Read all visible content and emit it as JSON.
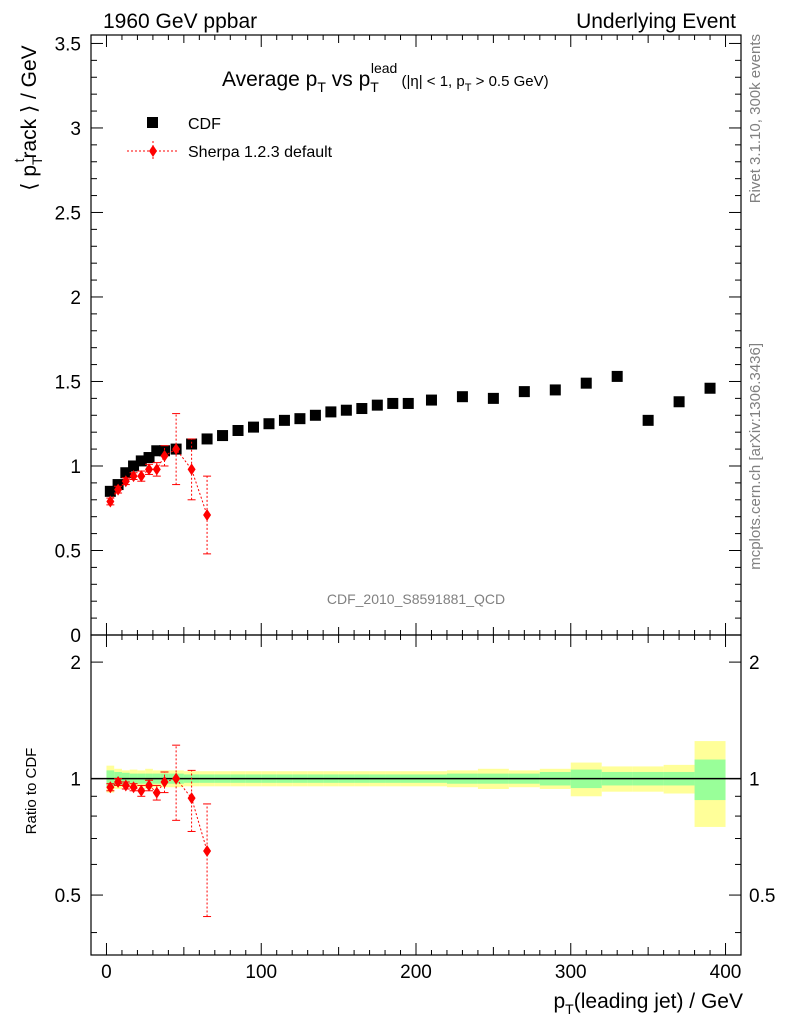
{
  "header": {
    "left": "1960 GeV ppbar",
    "right": "Underlying Event"
  },
  "side": {
    "rivet": "Rivet 3.1.10,  300k events",
    "mcplots": "mcplots.cern.ch [arXiv:1306.3436]"
  },
  "chart_data": [
    {
      "type": "scatter",
      "title": "Average p_T vs p_T^lead (|η| < 1, p_T > 0.5 GeV)",
      "ylabel": "⟨ p_T^track ⟩ / GeV",
      "watermark": "CDF_2010_S8591881_QCD",
      "xlim": [
        -10,
        410
      ],
      "ylim": [
        0,
        3.55
      ],
      "yticks": [
        0,
        0.5,
        1,
        1.5,
        2,
        2.5,
        3,
        3.5
      ],
      "ytick_labels": [
        "0",
        "0.5",
        "1",
        "1.5",
        "2",
        "2.5",
        "3",
        "3.5"
      ],
      "legend": [
        "CDF",
        "Sherpa 1.2.3 default"
      ],
      "series": [
        {
          "name": "CDF",
          "x": [
            2.5,
            7.5,
            12.5,
            17.5,
            22.5,
            27.5,
            32.5,
            37.5,
            45,
            55,
            65,
            75,
            85,
            95,
            105,
            115,
            125,
            135,
            145,
            155,
            165,
            175,
            185,
            195,
            210,
            230,
            250,
            270,
            290,
            310,
            330,
            350,
            370,
            390
          ],
          "y": [
            0.85,
            0.89,
            0.96,
            1.0,
            1.03,
            1.05,
            1.09,
            1.09,
            1.1,
            1.13,
            1.16,
            1.18,
            1.21,
            1.23,
            1.25,
            1.27,
            1.28,
            1.3,
            1.32,
            1.33,
            1.34,
            1.36,
            1.37,
            1.37,
            1.39,
            1.41,
            1.4,
            1.44,
            1.45,
            1.49,
            1.53,
            1.27,
            1.38,
            1.46
          ]
        },
        {
          "name": "Sherpa 1.2.3 default",
          "x": [
            2.5,
            7.5,
            12.5,
            17.5,
            22.5,
            27.5,
            32.5,
            37.5,
            45,
            55,
            65
          ],
          "y": [
            0.79,
            0.86,
            0.91,
            0.94,
            0.94,
            0.98,
            0.98,
            1.06,
            1.1,
            0.98,
            0.71
          ],
          "yerr": [
            0.02,
            0.02,
            0.02,
            0.02,
            0.03,
            0.03,
            0.04,
            0.06,
            0.21,
            0.18,
            0.23
          ]
        }
      ]
    },
    {
      "type": "scatter",
      "xlabel": "p_T(leading jet) / GeV",
      "ylabel": "Ratio to CDF",
      "xlim": [
        -10,
        410
      ],
      "ylim": [
        0.35,
        2.35
      ],
      "yscale": "log",
      "xticks": [
        0,
        100,
        200,
        300,
        400
      ],
      "xtick_labels": [
        "0",
        "100",
        "200",
        "300",
        "400"
      ],
      "yticks": [
        0.5,
        1,
        2
      ],
      "ytick_labels": [
        "0.5",
        "1",
        "2"
      ],
      "bands": {
        "edges": [
          0,
          5,
          10,
          15,
          20,
          25,
          30,
          35,
          40,
          50,
          60,
          70,
          80,
          90,
          100,
          110,
          120,
          130,
          140,
          150,
          160,
          170,
          180,
          190,
          200,
          220,
          240,
          260,
          280,
          300,
          320,
          340,
          360,
          380,
          400
        ],
        "green": [
          0.05,
          0.04,
          0.035,
          0.03,
          0.03,
          0.03,
          0.03,
          0.03,
          0.03,
          0.025,
          0.025,
          0.025,
          0.025,
          0.025,
          0.025,
          0.025,
          0.025,
          0.025,
          0.025,
          0.025,
          0.025,
          0.025,
          0.025,
          0.025,
          0.025,
          0.03,
          0.03,
          0.03,
          0.04,
          0.055,
          0.04,
          0.04,
          0.04,
          0.12
        ],
        "yellow": [
          0.08,
          0.06,
          0.05,
          0.055,
          0.05,
          0.06,
          0.05,
          0.05,
          0.05,
          0.045,
          0.045,
          0.045,
          0.045,
          0.045,
          0.045,
          0.045,
          0.045,
          0.045,
          0.045,
          0.045,
          0.045,
          0.045,
          0.045,
          0.045,
          0.045,
          0.05,
          0.06,
          0.05,
          0.06,
          0.1,
          0.075,
          0.075,
          0.085,
          0.25
        ]
      },
      "series": [
        {
          "name": "Sherpa 1.2.3 default",
          "x": [
            2.5,
            7.5,
            12.5,
            17.5,
            22.5,
            27.5,
            32.5,
            37.5,
            45,
            55,
            65
          ],
          "y": [
            0.95,
            0.98,
            0.96,
            0.95,
            0.93,
            0.96,
            0.92,
            0.98,
            1.0,
            0.89,
            0.65
          ],
          "yerr": [
            0.02,
            0.02,
            0.02,
            0.02,
            0.03,
            0.03,
            0.04,
            0.06,
            0.22,
            0.16,
            0.21
          ]
        }
      ]
    }
  ],
  "colors": {
    "cdf": "#000000",
    "mc": "#ff0000",
    "band_inner": "#99ff99",
    "band_outer": "#ffff99"
  }
}
